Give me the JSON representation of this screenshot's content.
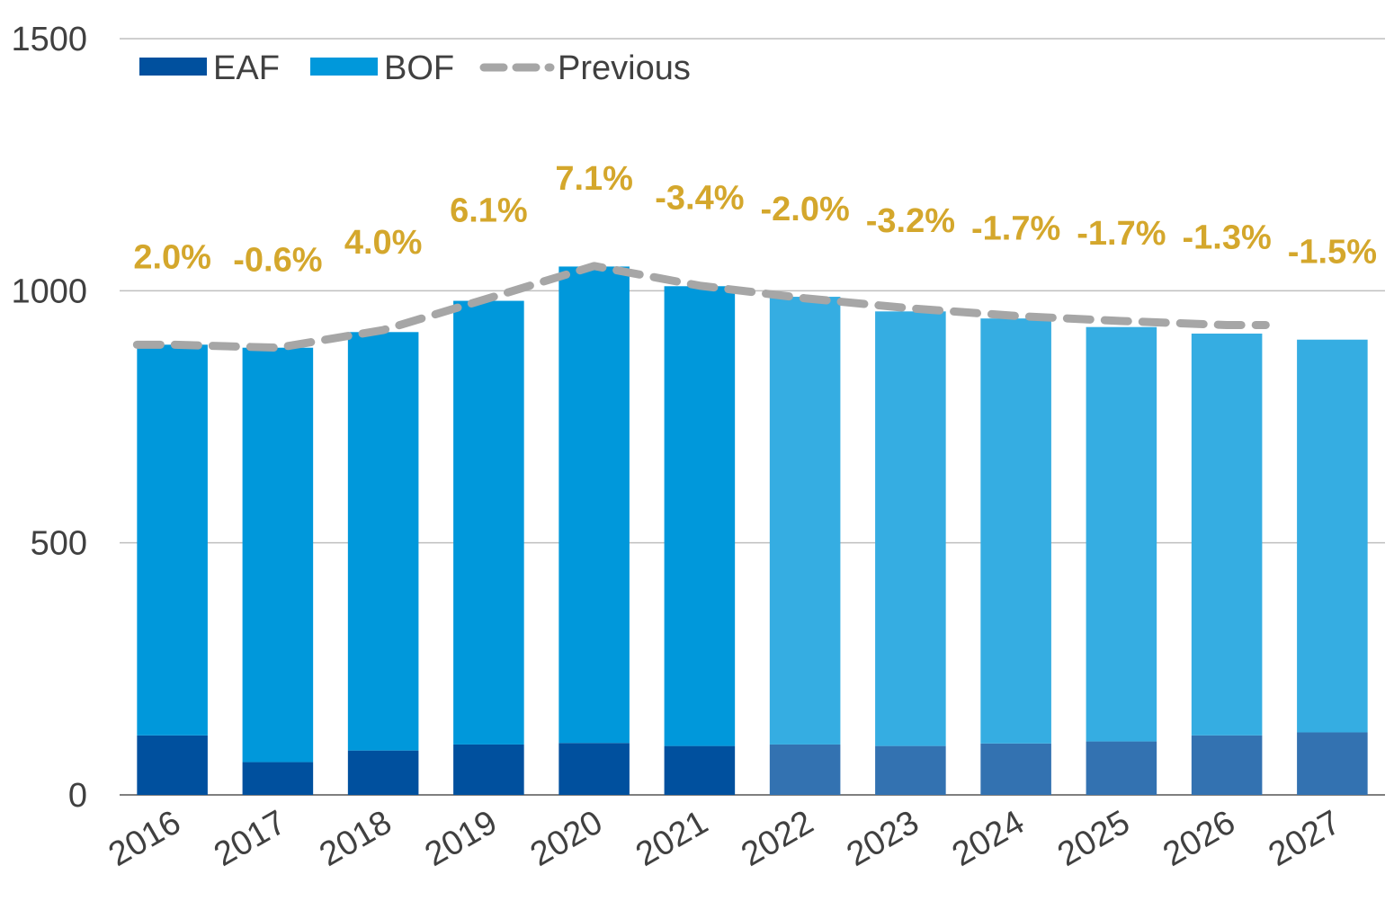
{
  "chart_data": {
    "type": "bar",
    "stacked": true,
    "categories": [
      "2016",
      "2017",
      "2018",
      "2019",
      "2020",
      "2021",
      "2022",
      "2023",
      "2024",
      "2025",
      "2026",
      "2027"
    ],
    "forecast_from": "2022",
    "series": [
      {
        "name": "EAF",
        "values": [
          118,
          65,
          88,
          100,
          103,
          97,
          100,
          97,
          102,
          106,
          118,
          124
        ]
      },
      {
        "name": "BOF",
        "values": [
          775,
          822,
          830,
          880,
          945,
          912,
          888,
          862,
          843,
          822,
          797,
          779
        ]
      }
    ],
    "previous": {
      "name": "Previous",
      "categories": [
        "2016",
        "2017",
        "2018",
        "2019",
        "2020",
        "2021",
        "2022",
        "2023",
        "2024",
        "2025",
        "2026"
      ],
      "values": [
        893,
        887,
        922,
        985,
        1049,
        1010,
        985,
        965,
        950,
        940,
        932
      ]
    },
    "growth_labels": [
      "2.0%",
      "-0.6%",
      "4.0%",
      "6.1%",
      "7.1%",
      "-3.4%",
      "-2.0%",
      "-3.2%",
      "-1.7%",
      "-1.7%",
      "-1.3%",
      "-1.5%"
    ],
    "ylim": [
      0,
      1500
    ],
    "yticks": [
      "0",
      "500",
      "1000",
      "1500"
    ],
    "gridlines": true,
    "legend_position": "top-left",
    "colors": {
      "EAF": "#00509e",
      "BOF": "#0098db",
      "EAF_forecast": "#3372b1",
      "BOF_forecast": "#35ade2",
      "previous": "#a6a6a6",
      "growth": "#d4a72c",
      "grid": "#bfbfbf",
      "axis": "#404040"
    }
  }
}
